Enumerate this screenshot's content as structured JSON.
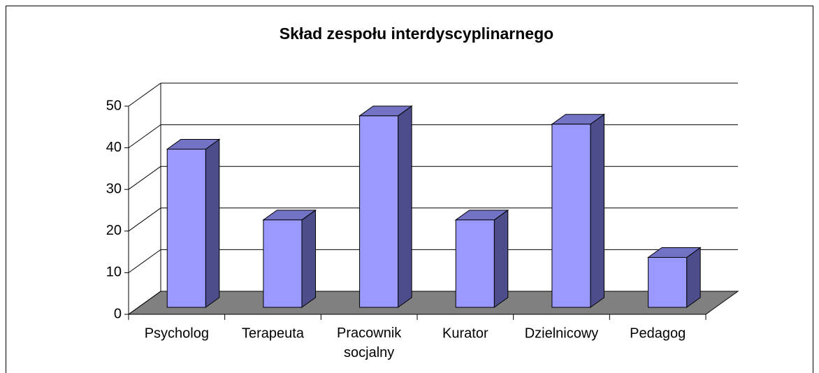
{
  "chart_data": {
    "type": "bar3d",
    "title": "Skład zespołu interdyscyplinarnego",
    "categories": [
      "Psycholog",
      "Terapeuta",
      "Pracownik socjalny",
      "Kurator",
      "Dzielnicowy",
      "Pedagog"
    ],
    "values": [
      38,
      21,
      46,
      21,
      44,
      12
    ],
    "color": "#9999ff",
    "ylim": [
      0,
      50
    ],
    "yticks": [
      0,
      10,
      20,
      30,
      40,
      50
    ],
    "grid": true
  }
}
